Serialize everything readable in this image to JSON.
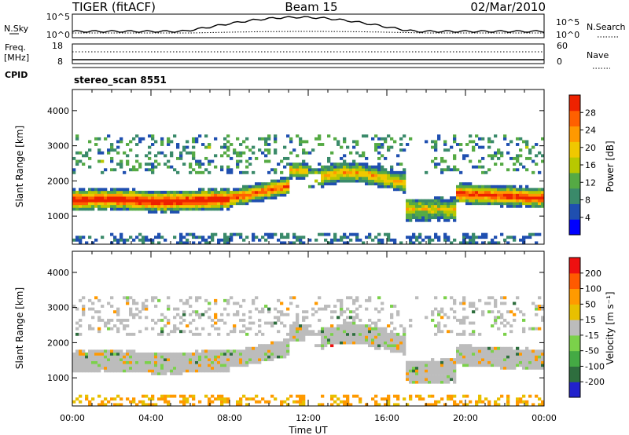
{
  "header": {
    "title": "TIGER (fitACF)",
    "beam": "Beam 15",
    "date": "02/Mar/2010"
  },
  "noise_panel": {
    "left_label": "N.Sky",
    "right_label": "N.Search",
    "left_ticks": [
      "10^5",
      "10^0"
    ],
    "right_ticks": [
      "10^5",
      "10^0"
    ]
  },
  "freq_panel": {
    "left_label_line1": "Freq.",
    "left_label_line2": "[MHz]",
    "left_ticks": [
      "18",
      "8"
    ],
    "right_label": "Nave",
    "right_ticks": [
      "60",
      "0"
    ]
  },
  "cpid": {
    "label": "CPID",
    "value": "stereo_scan 8551"
  },
  "colors": {
    "power_scale": [
      "#0000ff",
      "#1f4fb0",
      "#3a8a6a",
      "#55aa44",
      "#b8c800",
      "#f0c800",
      "#ff9900",
      "#ff6000",
      "#ee2200"
    ],
    "velocity_scale": [
      "#2222cc",
      "#2e6e3e",
      "#44aa44",
      "#7bd14a",
      "#bcbcbc",
      "#e8c000",
      "#ff9a00",
      "#ff5a00",
      "#ee1010"
    ]
  },
  "chart_data": [
    {
      "type": "heatmap",
      "panel": "power",
      "ylabel": "Slant Range [km]",
      "yticks": [
        "1000",
        "2000",
        "3000",
        "4000"
      ],
      "ylim": [
        200,
        4600
      ],
      "xlabel": "Time UT",
      "xticks": [
        "00:00",
        "04:00",
        "08:00",
        "12:00",
        "16:00",
        "20:00",
        "00:00"
      ],
      "colorbar": {
        "label": "Power [dB]",
        "ticks": [
          "4",
          "8",
          "12",
          "16",
          "20",
          "24",
          "28"
        ],
        "range": [
          0,
          30
        ]
      }
    },
    {
      "type": "heatmap",
      "panel": "velocity",
      "ylabel": "Slant Range [km]",
      "yticks": [
        "1000",
        "2000",
        "3000",
        "4000"
      ],
      "ylim": [
        200,
        4600
      ],
      "xlabel": "Time UT",
      "xticks": [
        "00:00",
        "04:00",
        "08:00",
        "12:00",
        "16:00",
        "20:00",
        "00:00"
      ],
      "colorbar": {
        "label": "Velocity [m s⁻¹]",
        "ticks": [
          "200",
          "100",
          "50",
          "15",
          "-15",
          "-50",
          "-100",
          "-200"
        ]
      }
    }
  ]
}
